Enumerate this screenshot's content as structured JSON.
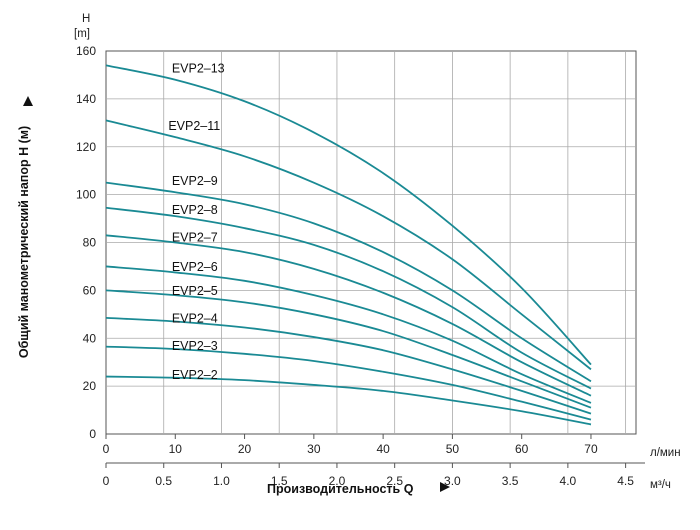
{
  "chart_data": {
    "type": "line",
    "title": "",
    "ylabel": "Общий манометрический напор H (м)",
    "y_unit_symbol": "H",
    "y_unit": "[m]",
    "xlabel": "Производительность Q",
    "x_unit_primary": "л/мин",
    "x_unit_secondary": "м³/ч",
    "x_primary_ticks": [
      "0",
      "10",
      "20",
      "30",
      "40",
      "50",
      "60",
      "70"
    ],
    "x_secondary_ticks": [
      "0",
      "0.5",
      "1.0",
      "1.5",
      "2.0",
      "2.5",
      "3.0",
      "3.5",
      "4.0",
      "4.5"
    ],
    "y_ticks": [
      "0",
      "20",
      "40",
      "60",
      "80",
      "100",
      "120",
      "140",
      "160"
    ],
    "xlim": [
      0,
      76.5
    ],
    "ylim": [
      0,
      160
    ],
    "grid": true,
    "line_color": "#1a8a94",
    "x": [
      0,
      10,
      20,
      30,
      40,
      50,
      60,
      70
    ],
    "series": [
      {
        "name": "EVP2-13",
        "values": [
          154,
          148,
          139,
          126,
          109,
          87,
          61,
          29
        ]
      },
      {
        "name": "EVP2-11",
        "values": [
          131,
          124,
          116,
          105,
          91,
          73,
          50,
          27
        ]
      },
      {
        "name": "EVP2-9",
        "values": [
          105,
          101,
          96,
          88,
          76,
          60,
          40,
          22
        ]
      },
      {
        "name": "EVP2-8",
        "values": [
          94.5,
          91,
          86,
          79,
          68,
          53,
          34,
          19
        ]
      },
      {
        "name": "EVP2-7",
        "values": [
          83,
          80,
          76,
          69,
          59,
          46,
          30,
          16
        ]
      },
      {
        "name": "EVP2-6",
        "values": [
          70,
          67.5,
          64,
          58,
          50,
          39,
          25,
          13
        ]
      },
      {
        "name": "EVP2-5",
        "values": [
          60,
          58,
          55,
          50,
          43,
          33,
          22,
          11
        ]
      },
      {
        "name": "EVP2-4",
        "values": [
          48.5,
          47,
          44.5,
          40.5,
          35,
          27,
          18,
          8.5
        ]
      },
      {
        "name": "EVP2-3",
        "values": [
          36.5,
          35.5,
          33.5,
          30.5,
          26,
          20.5,
          13.5,
          6
        ]
      },
      {
        "name": "EVP2-2",
        "values": [
          24,
          23.5,
          22.5,
          20.5,
          18,
          14,
          9.5,
          4
        ]
      }
    ],
    "label_positions": [
      {
        "name": "EVP2-13",
        "x": 9.5,
        "y": 151
      },
      {
        "name": "EVP2-11",
        "x": 9.0,
        "y": 127
      },
      {
        "name": "EVP2-9",
        "x": 9.5,
        "y": 104
      },
      {
        "name": "EVP2-8",
        "x": 9.5,
        "y": 92
      },
      {
        "name": "EVP2-7",
        "x": 9.5,
        "y": 80.5
      },
      {
        "name": "EVP2-6",
        "x": 9.5,
        "y": 68
      },
      {
        "name": "EVP2-5",
        "x": 9.5,
        "y": 58
      },
      {
        "name": "EVP2-4",
        "x": 9.5,
        "y": 46.5
      },
      {
        "name": "EVP2-3",
        "x": 9.5,
        "y": 35
      },
      {
        "name": "EVP2-2",
        "x": 9.5,
        "y": 23
      }
    ]
  }
}
